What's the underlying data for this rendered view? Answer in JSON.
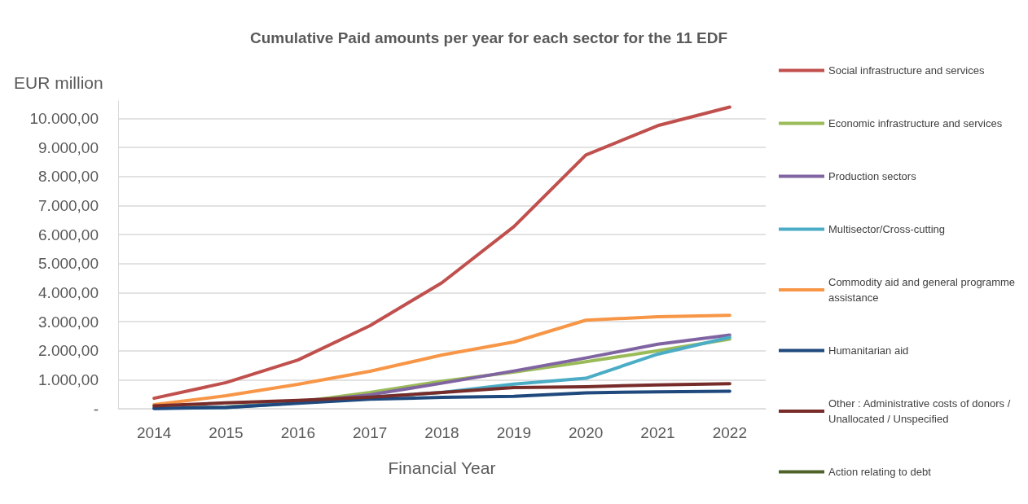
{
  "chart_data": {
    "type": "line",
    "title": "Cumulative Paid amounts per year for each sector for the 11 EDF",
    "xlabel": "Financial Year",
    "ylabel": "EUR million",
    "categories": [
      "2014",
      "2015",
      "2016",
      "2017",
      "2018",
      "2019",
      "2020",
      "2021",
      "2022"
    ],
    "series": [
      {
        "name": "Social infrastructure and services",
        "color": "#c0504d",
        "values": [
          360,
          900,
          1680,
          2860,
          4340,
          6270,
          8740,
          9750,
          10390
        ]
      },
      {
        "name": "Economic infrastructure and services",
        "color": "#9bbb59",
        "values": [
          30,
          60,
          230,
          560,
          950,
          1260,
          1620,
          2000,
          2400
        ]
      },
      {
        "name": "Production sectors",
        "color": "#8064a2",
        "values": [
          20,
          50,
          220,
          480,
          880,
          1300,
          1750,
          2220,
          2540
        ]
      },
      {
        "name": "Multisector/Cross-cutting",
        "color": "#4bacc6",
        "values": [
          20,
          40,
          200,
          400,
          560,
          850,
          1050,
          1880,
          2460
        ]
      },
      {
        "name": "Commodity aid and general programme assistance",
        "color": "#f79646",
        "values": [
          140,
          450,
          840,
          1290,
          1850,
          2300,
          3050,
          3170,
          3220
        ]
      },
      {
        "name": "Humanitarian aid",
        "color": "#1f497d",
        "values": [
          10,
          40,
          190,
          330,
          390,
          430,
          550,
          580,
          600
        ]
      },
      {
        "name": "Other : Administrative costs of donors / Unallocated / Unspecified",
        "color": "#772c2a",
        "values": [
          100,
          200,
          290,
          400,
          560,
          730,
          760,
          820,
          860
        ]
      },
      {
        "name": "Action relating to debt",
        "color": "#4f6228",
        "values": [
          null,
          null,
          null,
          null,
          null,
          null,
          null,
          null,
          null
        ]
      }
    ],
    "ylim": [
      0,
      10600
    ],
    "yticks": [
      {
        "value": 0,
        "label": "-"
      },
      {
        "value": 1000,
        "label": "1.000,00"
      },
      {
        "value": 2000,
        "label": "2.000,00"
      },
      {
        "value": 3000,
        "label": "3.000,00"
      },
      {
        "value": 4000,
        "label": "4.000,00"
      },
      {
        "value": 5000,
        "label": "5.000,00"
      },
      {
        "value": 6000,
        "label": "6.000,00"
      },
      {
        "value": 7000,
        "label": "7.000,00"
      },
      {
        "value": 8000,
        "label": "8.000,00"
      },
      {
        "value": 9000,
        "label": "9.000,00"
      },
      {
        "value": 10000,
        "label": "10.000,00"
      }
    ],
    "grid": "y",
    "legend": "right",
    "marker": "none",
    "line_style": "solid"
  }
}
